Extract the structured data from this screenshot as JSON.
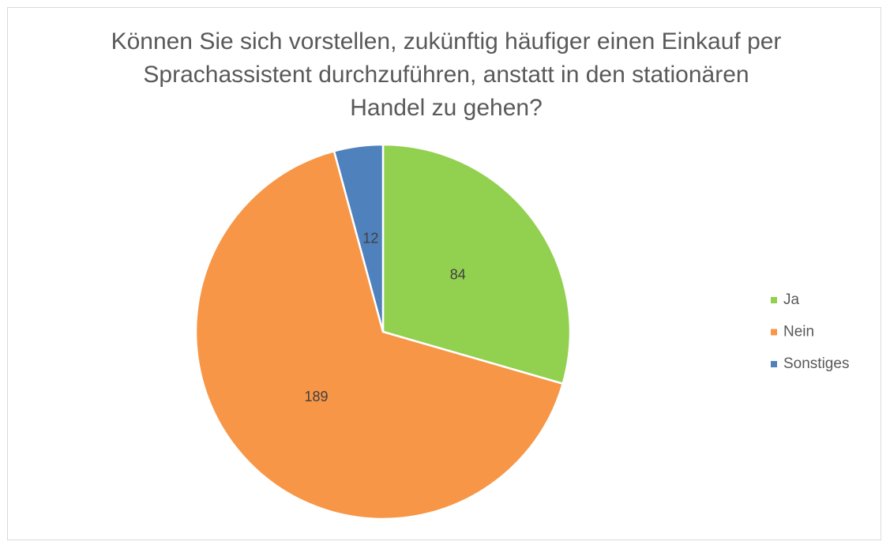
{
  "chart_data": {
    "type": "pie",
    "title": "Können Sie sich vorstellen, zukünftig häufiger einen Einkauf per Sprachassistent durchzuführen, anstatt in den stationären Handel zu gehen?",
    "categories": [
      "Ja",
      "Nein",
      "Sonstiges"
    ],
    "values": [
      84,
      189,
      12
    ],
    "colors": [
      "#92d050",
      "#f79646",
      "#4f81bd"
    ],
    "legend": "right"
  }
}
